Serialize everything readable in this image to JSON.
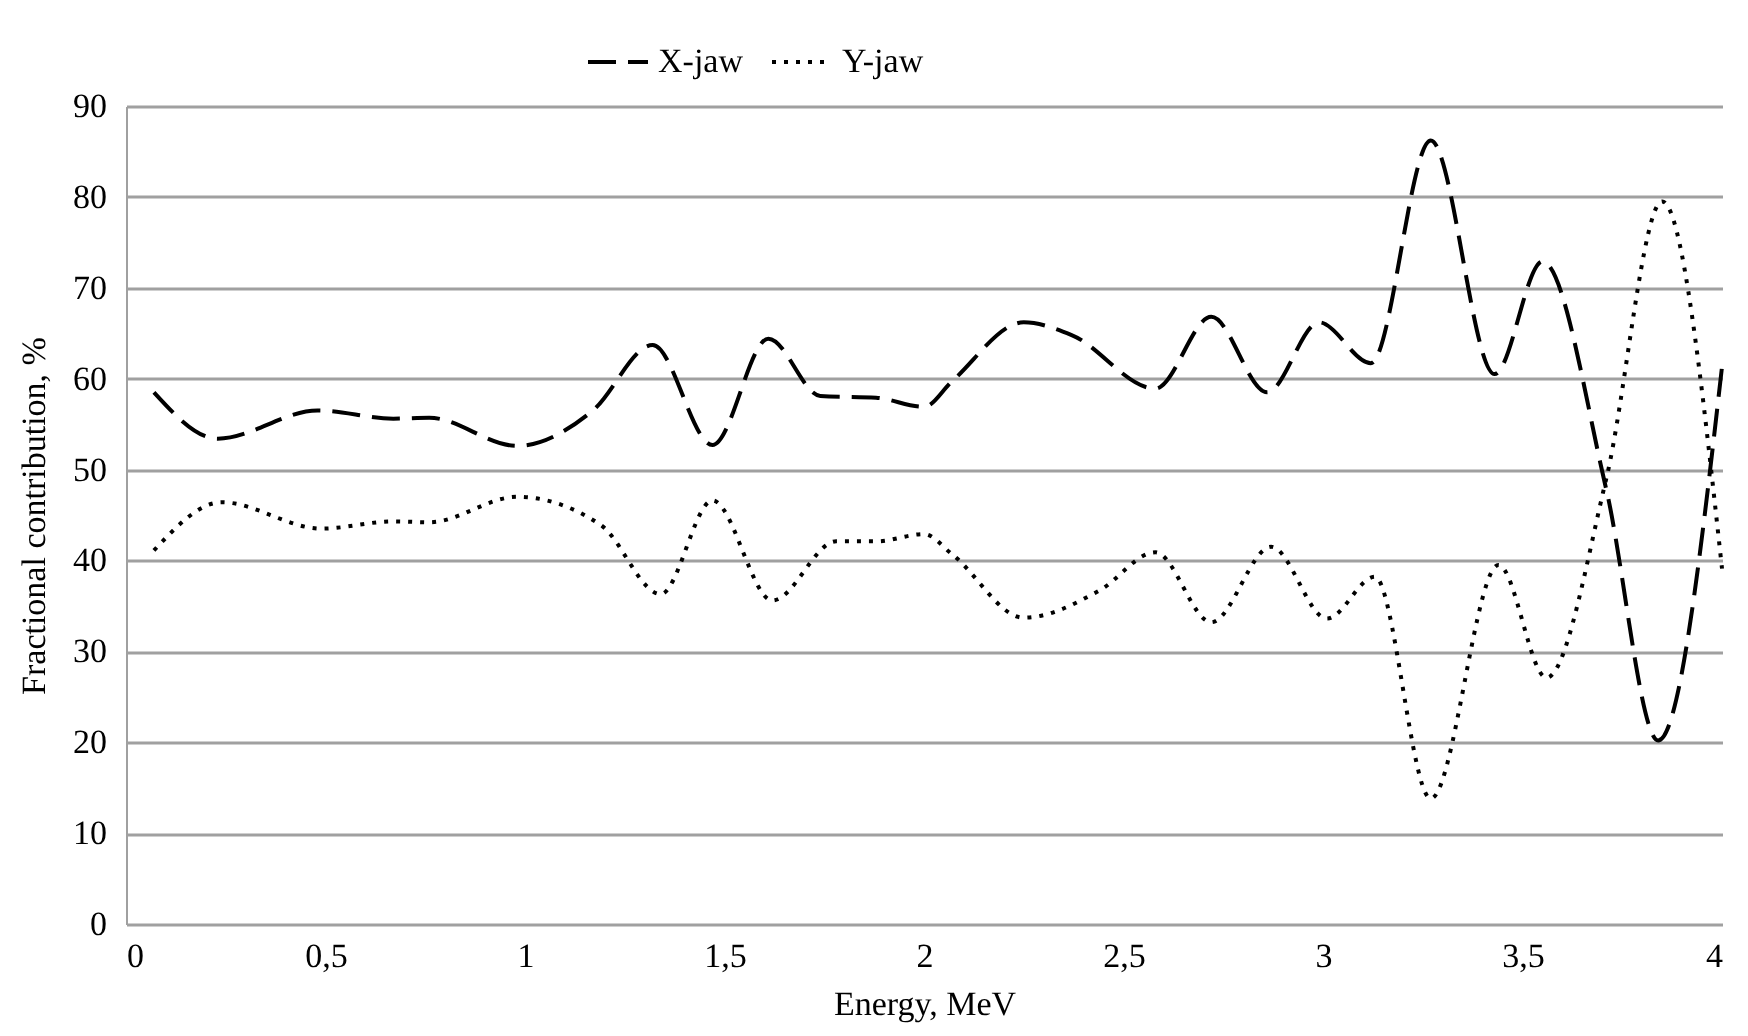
{
  "chart_data": {
    "type": "line",
    "xlabel": "Energy,  MeV",
    "ylabel": "Fractional contribution, %",
    "xlim": [
      0,
      4
    ],
    "ylim": [
      0,
      90
    ],
    "xticks": [
      0,
      {
        "value": 0.5,
        "label": "0,5"
      },
      1,
      {
        "value": 1.5,
        "label": "1,5"
      },
      2,
      {
        "value": 2.5,
        "label": "2,5"
      },
      3,
      {
        "value": 3.5,
        "label": "3,5"
      },
      4
    ],
    "yticks": [
      0,
      10,
      20,
      30,
      40,
      50,
      60,
      70,
      80,
      90
    ],
    "grid": "y",
    "legend": "top",
    "marker": "none",
    "series": [
      {
        "name": "X-jaw",
        "color": "#000000",
        "line_style": "dashed",
        "x": [
          0.07,
          0.23,
          0.48,
          0.67,
          0.76,
          0.98,
          1.17,
          1.32,
          1.47,
          1.61,
          1.74,
          1.88,
          2.0,
          2.07,
          2.25,
          2.37,
          2.58,
          2.72,
          2.86,
          2.99,
          3.12,
          3.27,
          3.43,
          3.55,
          3.71,
          3.84,
          4.0
        ],
        "values": [
          58.5,
          53.4,
          56.5,
          55.6,
          55.7,
          52.6,
          56.5,
          63.7,
          52.7,
          64.4,
          58.1,
          57.9,
          56.9,
          59.7,
          66.2,
          64.8,
          58.9,
          66.8,
          58.5,
          66.2,
          61.7,
          86.2,
          60.5,
          72.9,
          47.8,
          20.2,
          61.3
        ]
      },
      {
        "name": "Y-jaw",
        "color": "#000000",
        "line_style": "dotted",
        "x": [
          0.07,
          0.24,
          0.49,
          0.67,
          0.76,
          0.98,
          1.19,
          1.34,
          1.47,
          1.62,
          1.78,
          1.88,
          2.0,
          2.07,
          2.25,
          2.44,
          2.58,
          2.72,
          2.87,
          3.01,
          3.13,
          3.27,
          3.44,
          3.56,
          3.71,
          3.85,
          4.0
        ],
        "values": [
          41.1,
          46.4,
          43.5,
          44.3,
          44.2,
          47.0,
          43.9,
          36.3,
          46.6,
          35.6,
          42.1,
          42.1,
          42.9,
          40.7,
          33.7,
          36.7,
          40.9,
          33.2,
          41.5,
          33.6,
          38.2,
          13.8,
          39.5,
          27.1,
          49.0,
          79.5,
          39.1
        ]
      }
    ]
  }
}
